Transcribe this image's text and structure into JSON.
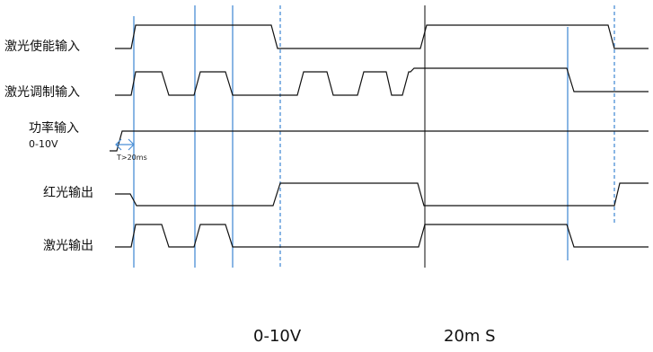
{
  "signals": [
    {
      "label": "激光使能输入"
    },
    {
      "label": "激光调制输入"
    },
    {
      "label": "功率输入",
      "sublabel": "0-10V"
    },
    {
      "label": "红光输出"
    },
    {
      "label": "激光输出"
    }
  ],
  "annotations": {
    "delay": "T>20ms"
  },
  "bottom_labels": {
    "voltage": "0-10V",
    "time": "20m S"
  }
}
